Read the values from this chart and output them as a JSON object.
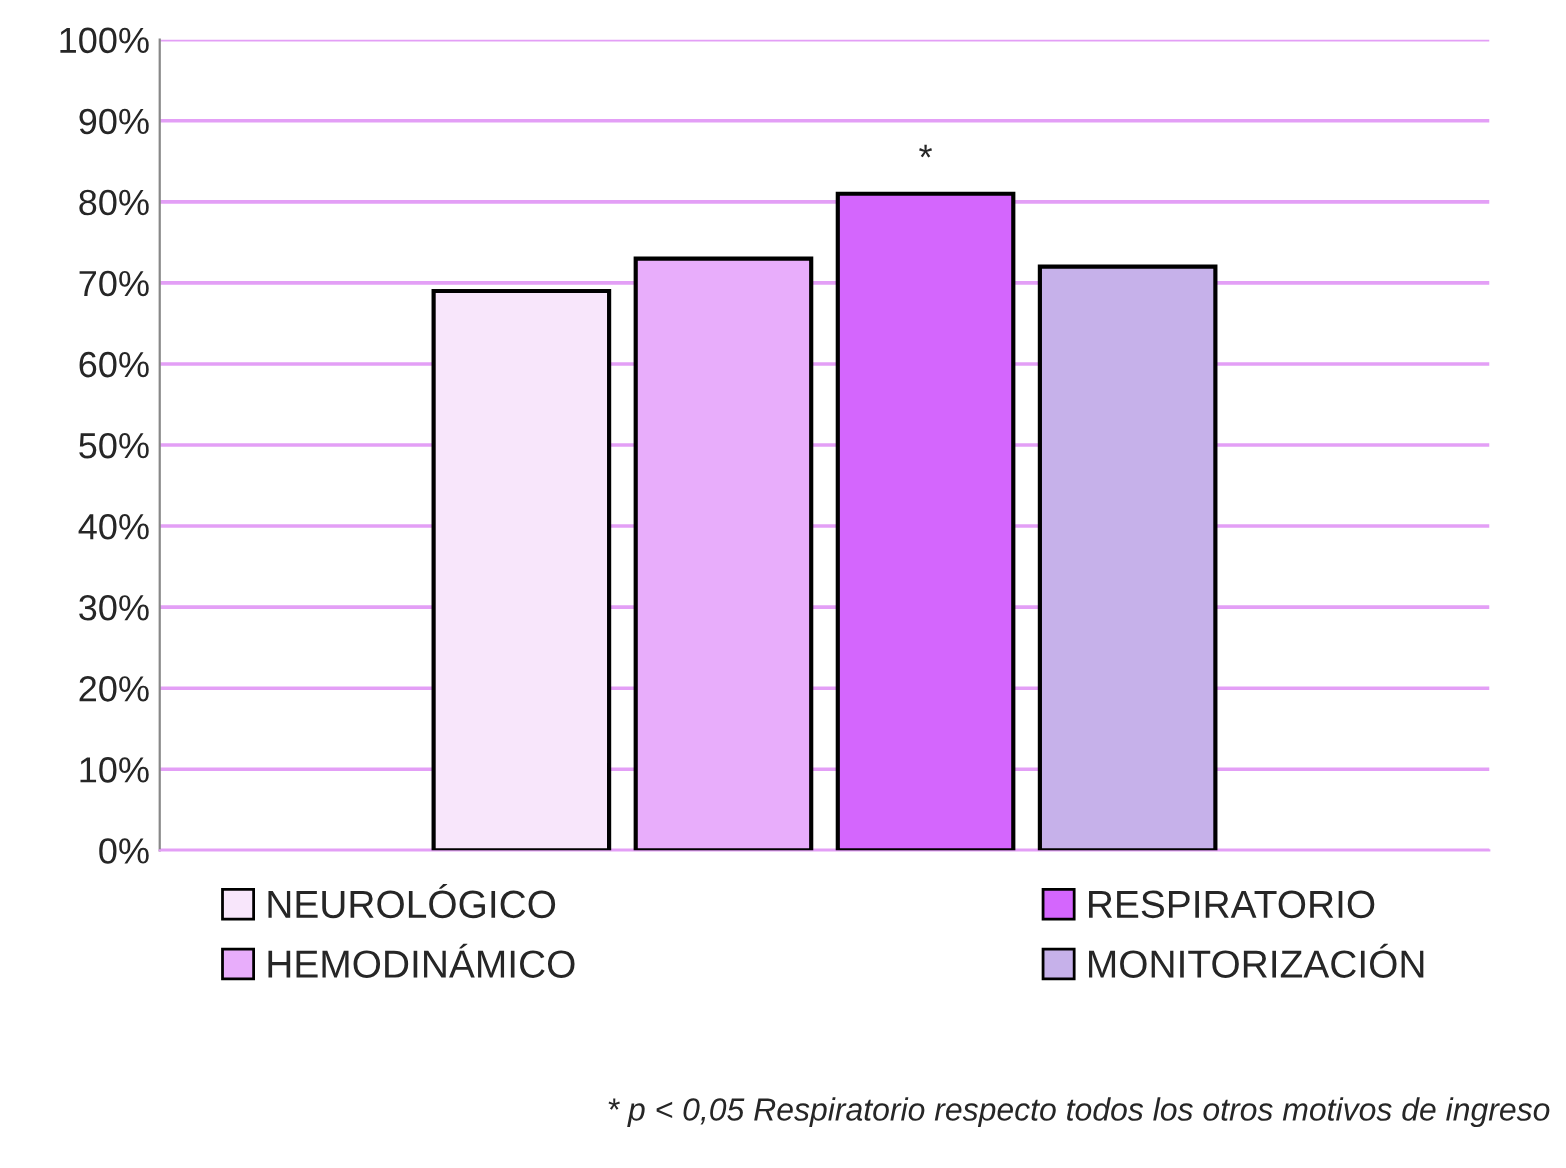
{
  "chart_data": {
    "type": "bar",
    "categories": [
      null
    ],
    "series": [
      {
        "name": "NEUROLÓGICO",
        "color": "#f8e6fb",
        "values": [
          69
        ]
      },
      {
        "name": "HEMODINÁMICO",
        "color": "#e8adfb",
        "values": [
          73
        ]
      },
      {
        "name": "RESPIRATORIO",
        "color": "#d466fd",
        "values": [
          81
        ]
      },
      {
        "name": "MONITORIZACIÓN",
        "color": "#c6b1ea",
        "values": [
          72
        ]
      }
    ],
    "ylim": [
      0,
      100
    ],
    "yticks": [
      {
        "value": 0,
        "label": "0%"
      },
      {
        "value": 10,
        "label": "10%"
      },
      {
        "value": 20,
        "label": "20%"
      },
      {
        "value": 30,
        "label": "30%"
      },
      {
        "value": 40,
        "label": "40%"
      },
      {
        "value": 50,
        "label": "50%"
      },
      {
        "value": 60,
        "label": "60%"
      },
      {
        "value": 70,
        "label": "70%"
      },
      {
        "value": 80,
        "label": "80%"
      },
      {
        "value": 90,
        "label": "90%"
      },
      {
        "value": 100,
        "label": "100%"
      }
    ],
    "grid": "y",
    "legend": "bottom",
    "annotations": [
      {
        "text": "*",
        "y": 81
      },
      "* p < 0,05 Respiratorio respecto todos los otros motivos de ingreso"
    ]
  }
}
